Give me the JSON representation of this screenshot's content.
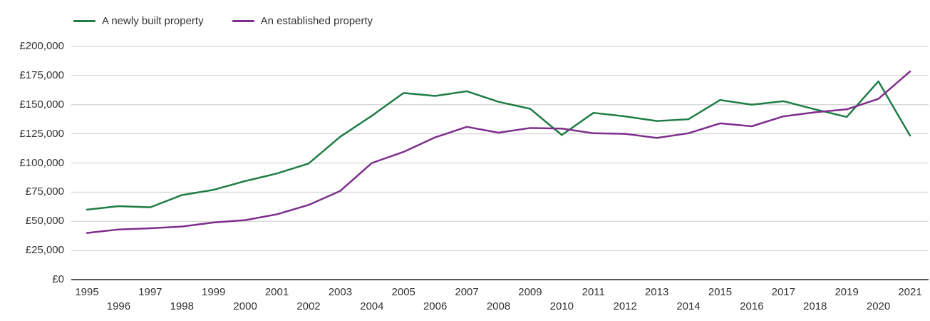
{
  "chart_data": {
    "type": "line",
    "title": "",
    "xlabel": "",
    "ylabel": "",
    "x": [
      1995,
      1996,
      1997,
      1998,
      1999,
      2000,
      2001,
      2002,
      2003,
      2004,
      2005,
      2006,
      2007,
      2008,
      2009,
      2010,
      2011,
      2012,
      2013,
      2014,
      2015,
      2016,
      2017,
      2018,
      2019,
      2020,
      2021
    ],
    "series": [
      {
        "name": "A newly built property",
        "color": "#1e7d45",
        "values": [
          60000,
          63000,
          62000,
          72500,
          77000,
          84500,
          91000,
          99500,
          122500,
          140500,
          160000,
          157500,
          161500,
          152500,
          146500,
          124000,
          143000,
          140000,
          136000,
          137500,
          154000,
          150000,
          153000,
          146000,
          139500,
          170000,
          123500
        ]
      },
      {
        "name": "An established property",
        "color": "#7d2e8c",
        "values": [
          40000,
          43000,
          44000,
          45500,
          49000,
          51000,
          56000,
          64000,
          76000,
          100000,
          109500,
          122000,
          131000,
          126000,
          130000,
          129500,
          125500,
          125000,
          121500,
          125500,
          134000,
          131500,
          140000,
          143500,
          146000,
          155000,
          178500
        ]
      }
    ],
    "ylim": [
      0,
      200000
    ],
    "ytick_step": 25000,
    "ytick_labels": [
      "£0",
      "£25,000",
      "£50,000",
      "£75,000",
      "£100,000",
      "£125,000",
      "£150,000",
      "£175,000",
      "£200,000"
    ],
    "xtick_labels": [
      "1995",
      "1996",
      "1997",
      "1998",
      "1999",
      "2000",
      "2001",
      "2002",
      "2003",
      "2004",
      "2005",
      "2006",
      "2007",
      "2008",
      "2009",
      "2010",
      "2011",
      "2012",
      "2013",
      "2014",
      "2015",
      "2016",
      "2017",
      "2018",
      "2019",
      "2020",
      "2021"
    ],
    "grid": true,
    "legend_position": "top-left",
    "currency": "£"
  }
}
